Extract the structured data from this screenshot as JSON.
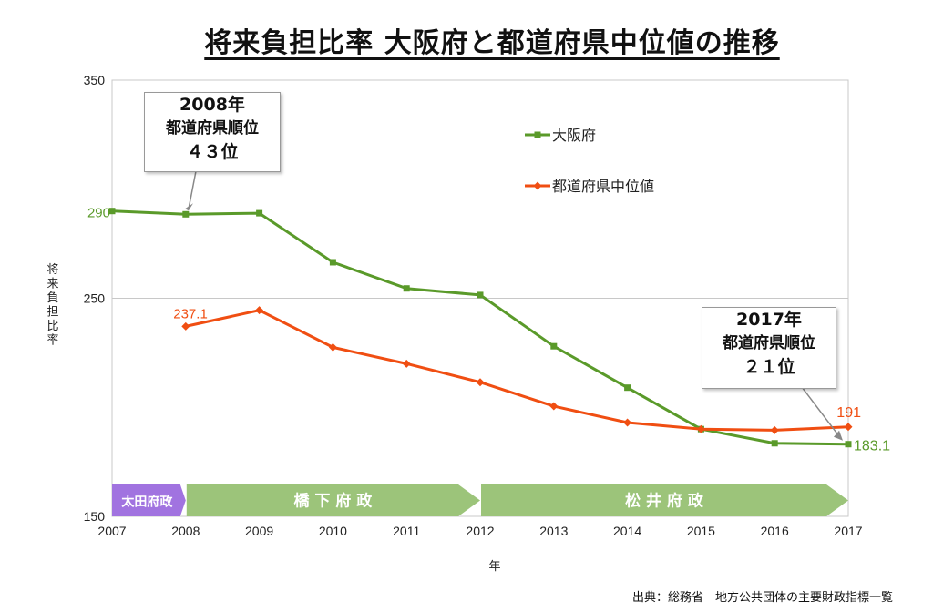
{
  "chart_data": {
    "type": "line",
    "title": "将来負担比率 大阪府と都道府県中位値の推移",
    "xlabel": "年",
    "ylabel": "将来負担比率",
    "ylim": [
      150,
      350
    ],
    "y_ticks": [
      "150",
      "250",
      "350"
    ],
    "categories": [
      "2007",
      "2008",
      "2009",
      "2010",
      "2011",
      "2012",
      "2013",
      "2014",
      "2015",
      "2016",
      "2017"
    ],
    "legend_position": "top-right",
    "series": [
      {
        "name": "大阪府",
        "color": "#5a9a2a",
        "marker": "square",
        "values": [
          290,
          288.5,
          289,
          266.5,
          254.5,
          251.5,
          228,
          209,
          190,
          183.5,
          183.1
        ]
      },
      {
        "name": "都道府県中位値",
        "color": "#f04e12",
        "marker": "diamond",
        "values": [
          null,
          237.1,
          244.5,
          227.5,
          220,
          211.5,
          200.5,
          193,
          190,
          189.5,
          191
        ]
      }
    ],
    "data_labels": [
      {
        "series": 0,
        "category": "2007",
        "text": "290"
      },
      {
        "series": 1,
        "category": "2008",
        "text": "237.1"
      },
      {
        "series": 1,
        "category": "2017",
        "text": "191"
      },
      {
        "series": 0,
        "category": "2017",
        "text": "183.1"
      }
    ],
    "bands": [
      {
        "label": "太田府政",
        "from": "2007",
        "to": "2008",
        "color": "#a173e0"
      },
      {
        "label": "橋下府政",
        "from": "2008",
        "to": "2012",
        "color": "#9cc47a"
      },
      {
        "label": "松井府政",
        "from": "2012",
        "to": "2017",
        "color": "#9cc47a"
      }
    ],
    "callouts": [
      {
        "lines": [
          "2008年",
          "都道府県順位",
          "４３位"
        ],
        "points_to_category": "2008",
        "points_to_series": 0
      },
      {
        "lines": [
          "2017年",
          "都道府県順位",
          "２１位"
        ],
        "points_to_category": "2017",
        "points_to_series": 0
      }
    ]
  },
  "source_note": "出典：総務省　地方公共団体の主要財政指標一覧"
}
